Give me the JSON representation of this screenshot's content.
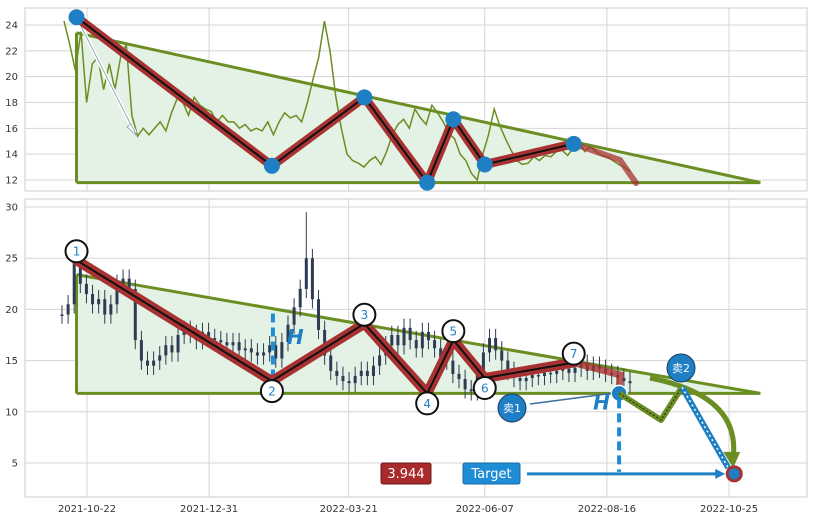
{
  "chart_data": [
    {
      "type": "line",
      "panel": "top",
      "ylim": [
        11,
        25.5
      ],
      "yticks": [
        12,
        14,
        16,
        18,
        20,
        22,
        24
      ],
      "grid": true,
      "price": [
        24.3,
        22.5,
        20.5,
        23.5,
        18,
        21,
        21.5,
        19,
        21,
        19,
        21.5,
        22.5,
        17,
        15.4,
        16,
        15.5,
        16,
        16.5,
        15.8,
        17.2,
        18.3,
        18,
        17,
        18.4,
        17.8,
        17.5,
        17.3,
        16.5,
        17,
        16.5,
        16.5,
        16,
        16.3,
        15.8,
        16,
        15.8,
        16.5,
        15.5,
        16.5,
        17.2,
        16.8,
        17,
        16.5,
        18,
        19.8,
        21.5,
        24.3,
        22,
        18.5,
        16,
        14,
        13.5,
        13.3,
        13,
        13.5,
        13.8,
        13.2,
        14.2,
        15.5,
        16.3,
        16.7,
        16,
        17.5,
        16.8,
        16.3,
        17.8,
        17.2,
        16.5,
        15.6,
        15.2,
        14,
        13.5,
        12.5,
        12,
        14,
        15.5,
        17.5,
        16.2,
        15.2,
        14.3,
        13.5,
        13.2,
        13.3,
        13.8,
        13.5,
        13.9,
        13.8,
        14.2,
        14.3,
        13.9,
        14.5,
        14.9,
        14.2,
        14.6,
        14.2,
        13.9,
        13.8,
        13.5,
        13.2,
        13,
        12.7
      ],
      "zigzag": [
        {
          "date": "2021-10-16",
          "value": 24.6
        },
        {
          "date": "2022-02-05",
          "value": 13.1
        },
        {
          "date": "2022-03-30",
          "value": 18.4
        },
        {
          "date": "2022-05-05",
          "value": 11.8
        },
        {
          "date": "2022-05-20",
          "value": 16.7
        },
        {
          "date": "2022-06-07",
          "value": 13.2
        },
        {
          "date": "2022-07-28",
          "value": 14.8
        }
      ],
      "triangle": {
        "upper": [
          {
            "date": "2021-10-16",
            "value": 23.4
          },
          {
            "date": "2022-11-12",
            "value": 11.8
          }
        ],
        "base": 11.8
      }
    },
    {
      "type": "candlestick",
      "panel": "bottom",
      "ylim": [
        2,
        30.5
      ],
      "yticks": [
        5,
        10,
        15,
        20,
        25,
        30
      ],
      "xticks": [
        "2021-10-22",
        "2021-12-31",
        "2022-03-21",
        "2022-06-07",
        "2022-08-16",
        "2022-10-25"
      ],
      "grid": true,
      "price": [
        19.5,
        20.5,
        24.8,
        22.5,
        21.5,
        20.5,
        21,
        19.5,
        20.5,
        22.5,
        23,
        22,
        17,
        15,
        14.5,
        15,
        15.5,
        16.5,
        15.8,
        17.5,
        18,
        17.6,
        17,
        17.8,
        17.2,
        17,
        16.8,
        16.5,
        16.8,
        16,
        16.2,
        15.8,
        15.5,
        15.8,
        16.5,
        15.2,
        16.8,
        18.5,
        20.2,
        22,
        25,
        21,
        18,
        15.5,
        14,
        13.5,
        13,
        12.8,
        13.5,
        14,
        13.5,
        14.5,
        15.5,
        16.5,
        17.5,
        16.5,
        18.2,
        17,
        16.2,
        17.8,
        17,
        16.2,
        15.3,
        15,
        13.7,
        13.2,
        12.2,
        12,
        14,
        15.8,
        17.2,
        16,
        15,
        14,
        13.3,
        13,
        13.3,
        13.6,
        13.5,
        13.8,
        13.7,
        14,
        14.2,
        13.8,
        14.3,
        14.7,
        14,
        14.5,
        14.2,
        13.8,
        13.6,
        13.3,
        13,
        12.8
      ],
      "peak_high": 29.5,
      "zigzag": [
        {
          "label": "1",
          "date": "2021-10-16",
          "value": 24.8
        },
        {
          "label": "2",
          "date": "2022-02-05",
          "value": 13.0
        },
        {
          "label": "3",
          "date": "2022-03-30",
          "value": 18.6
        },
        {
          "label": "4",
          "date": "2022-05-05",
          "value": 11.8
        },
        {
          "label": "5",
          "date": "2022-05-20",
          "value": 17.0
        },
        {
          "label": "6",
          "date": "2022-06-07",
          "value": 13.3
        },
        {
          "label": "7",
          "date": "2022-07-28",
          "value": 14.8
        }
      ],
      "triangle": {
        "upper": [
          {
            "date": "2021-10-16",
            "value": 23.4
          },
          {
            "date": "2022-11-12",
            "value": 11.8
          }
        ],
        "base": 11.8
      },
      "annotations": {
        "h_label": "H",
        "breakout_value": 11.8,
        "target_value": 3.944,
        "target_value_label": "3.944",
        "target_label": "Target",
        "sell1_label": "卖1",
        "sell2_label": "卖2"
      }
    }
  ],
  "colors": {
    "triangle_line": "#6b8e23",
    "triangle_fill": "#e3f2e4",
    "zigzag": "#a83232",
    "price_line": "#6b8e23",
    "candles": "#2e3b55",
    "marker": "#1f7fc4",
    "target_badge": "#1f8dd6",
    "value_badge": "#a82a2a"
  }
}
